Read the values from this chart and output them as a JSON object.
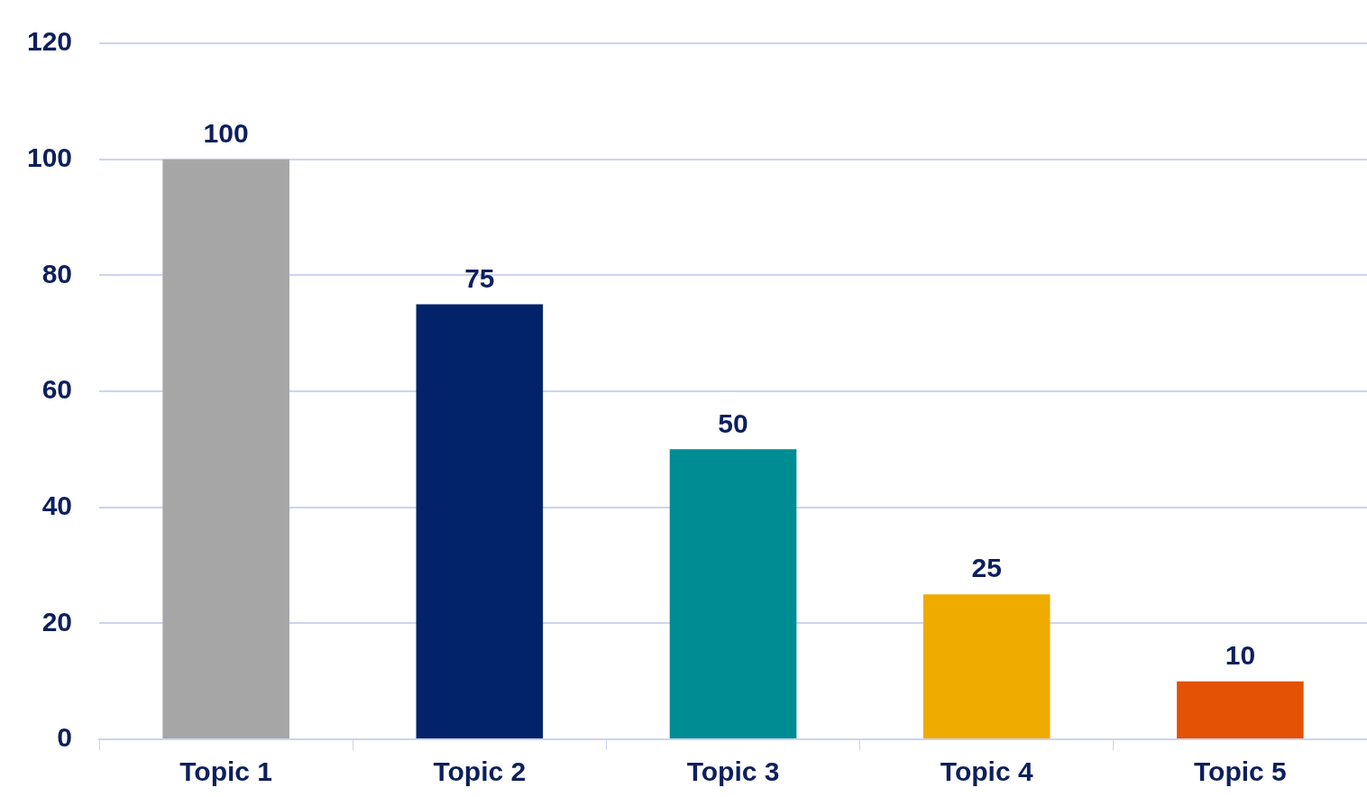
{
  "chart_data": {
    "type": "bar",
    "categories": [
      "Topic 1",
      "Topic 2",
      "Topic 3",
      "Topic 4",
      "Topic 5"
    ],
    "values": [
      100,
      75,
      50,
      25,
      10
    ],
    "colors": [
      "#a6a6a6",
      "#022369",
      "#008c93",
      "#f0ab00",
      "#e35205"
    ],
    "ylim": [
      0,
      120
    ],
    "yticks": [
      0,
      20,
      40,
      60,
      80,
      100,
      120
    ],
    "grid": "y",
    "data_labels": true,
    "legend": false
  }
}
